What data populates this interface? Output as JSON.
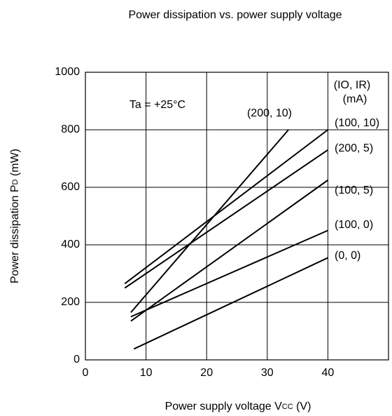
{
  "chart_data": {
    "type": "line",
    "title": "Power dissipation vs. power supply voltage",
    "x_label": {
      "text": "Power supply voltage V",
      "sub": "CC",
      "suffix": " (V)"
    },
    "y_label": {
      "text": "Power dissipation P",
      "sub": "D",
      "suffix": " (mW)"
    },
    "annotations": [
      "Ta = +25°C",
      "(IO, IR)",
      "(mA)"
    ],
    "xlim": [
      0,
      50
    ],
    "xticks": [
      0,
      10,
      20,
      30,
      40
    ],
    "ylim": [
      0,
      1000
    ],
    "yticks": [
      0,
      200,
      400,
      600,
      800,
      1000
    ],
    "grid": true,
    "series": [
      {
        "name": "(200, 10)",
        "color": "#000000",
        "x": [
          7.5,
          33.5
        ],
        "values": [
          165,
          800
        ]
      },
      {
        "name": "(100, 10)",
        "color": "#000000",
        "x": [
          6.5,
          40
        ],
        "values": [
          265,
          800
        ]
      },
      {
        "name": "(200, 5)",
        "color": "#000000",
        "x": [
          6.5,
          40
        ],
        "values": [
          250,
          730
        ]
      },
      {
        "name": "(100, 5)",
        "color": "#000000",
        "x": [
          7.5,
          40
        ],
        "values": [
          135,
          625
        ]
      },
      {
        "name": "(100, 0)",
        "color": "#000000",
        "x": [
          7.5,
          40
        ],
        "values": [
          150,
          450
        ]
      },
      {
        "name": "(0, 0)",
        "color": "#000000",
        "x": [
          8,
          40
        ],
        "values": [
          38,
          355
        ]
      }
    ]
  }
}
